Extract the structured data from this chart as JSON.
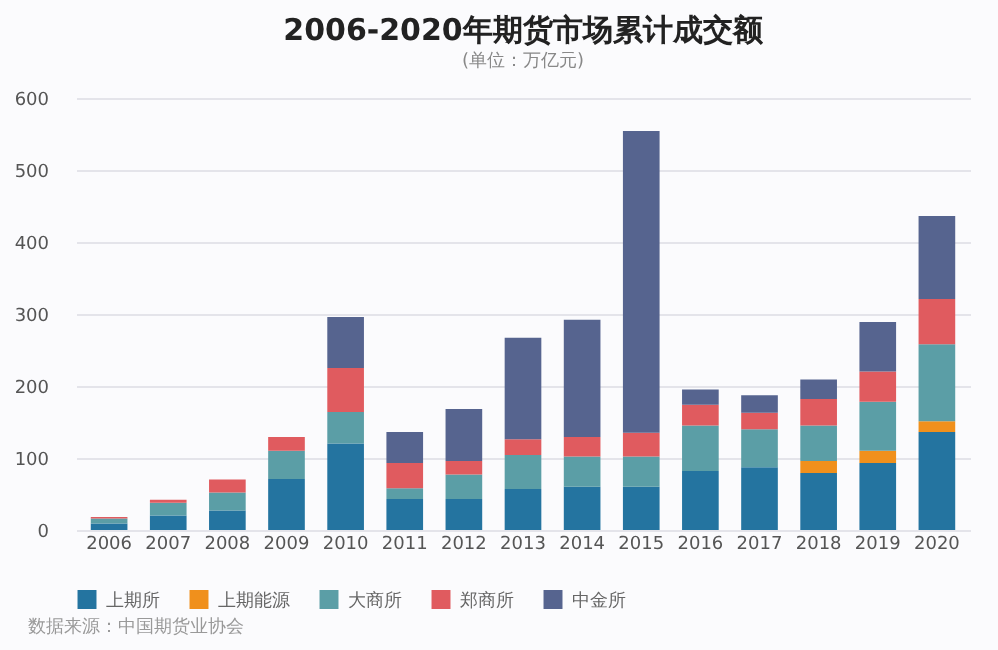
{
  "chart_data": {
    "type": "bar",
    "title": "2006-2020年期货市场累计成交额",
    "subtitle": "(单位：万亿元)",
    "stacked": true,
    "categories": [
      "2006",
      "2007",
      "2008",
      "2009",
      "2010",
      "2011",
      "2012",
      "2013",
      "2014",
      "2015",
      "2016",
      "2017",
      "2018",
      "2019",
      "2020"
    ],
    "series": [
      {
        "name": "上期所",
        "color": "#2474a0",
        "values": [
          9,
          20,
          27,
          71,
          120,
          43,
          43,
          57,
          60,
          60,
          82,
          87,
          79,
          93,
          136
        ]
      },
      {
        "name": "上期能源",
        "color": "#f0901c",
        "values": [
          null,
          null,
          null,
          null,
          null,
          null,
          null,
          null,
          null,
          null,
          null,
          null,
          17,
          17,
          15
        ]
      },
      {
        "name": "大商所",
        "color": "#5b9ea6",
        "values": [
          7,
          18,
          25,
          39,
          44,
          15,
          34,
          47,
          42,
          42,
          63,
          53,
          49,
          68,
          107
        ]
      },
      {
        "name": "郑商所",
        "color": "#e05b5f",
        "values": [
          2,
          4,
          18,
          19,
          61,
          35,
          19,
          22,
          27,
          33,
          29,
          23,
          37,
          42,
          63
        ]
      },
      {
        "name": "中金所",
        "color": "#56648f",
        "values": [
          null,
          null,
          null,
          null,
          71,
          43,
          72,
          141,
          163,
          419,
          21,
          24,
          27,
          69,
          115
        ]
      }
    ],
    "ylim": [
      0,
      600
    ],
    "yticks": [
      0,
      100,
      200,
      300,
      400,
      500,
      600
    ],
    "grid": "y",
    "legend": "bottom",
    "annotations": [
      "数据来源：中国期货业协会"
    ]
  }
}
